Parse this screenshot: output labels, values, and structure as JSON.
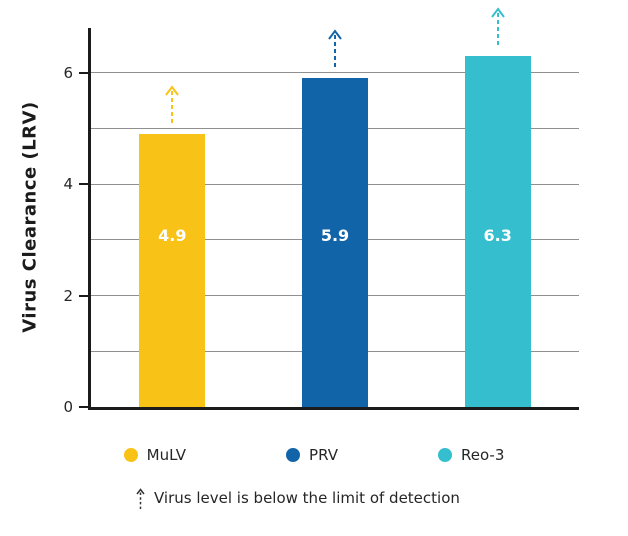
{
  "chart_data": {
    "type": "bar",
    "title": "",
    "ylabel": "Virus Clearance (LRV)",
    "xlabel": "",
    "ylim": [
      0,
      6.8
    ],
    "yticks": [
      0,
      2,
      4,
      6
    ],
    "gridlines": [
      1,
      2,
      3,
      4,
      5,
      6
    ],
    "categories": [
      "MuLV",
      "PRV",
      "Reo-3"
    ],
    "values": [
      4.9,
      5.9,
      6.3
    ],
    "bar_labels": [
      "4.9",
      "5.9",
      "6.3"
    ],
    "bar_colors": [
      "#F9C216",
      "#1264A9",
      "#35BFCE"
    ],
    "annotations": "dashed up-arrow above each bar indicating value exceeds limit of detection",
    "legend": {
      "position": "bottom",
      "items": [
        {
          "label": "MuLV",
          "color": "#F9C216"
        },
        {
          "label": "PRV",
          "color": "#1264A9"
        },
        {
          "label": "Reo-3",
          "color": "#35BFCE"
        }
      ]
    },
    "footnote": "Virus level is below the limit of detection"
  },
  "colors": {
    "axis": "#1b1b1b",
    "gridline": "#8f8f8f",
    "text": "#262626"
  }
}
